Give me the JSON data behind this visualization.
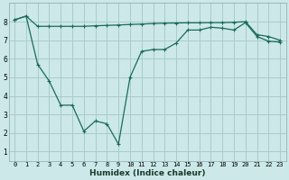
{
  "title": "",
  "xlabel": "Humidex (Indice chaleur)",
  "background_color": "#cce8e8",
  "grid_color": "#aacccc",
  "line_color": "#1a6b5a",
  "xlim": [
    -0.5,
    23.5
  ],
  "ylim": [
    0.5,
    9.0
  ],
  "yticks": [
    1,
    2,
    3,
    4,
    5,
    6,
    7,
    8
  ],
  "xticks": [
    0,
    1,
    2,
    3,
    4,
    5,
    6,
    7,
    8,
    9,
    10,
    11,
    12,
    13,
    14,
    15,
    16,
    17,
    18,
    19,
    20,
    21,
    22,
    23
  ],
  "line1_x": [
    0,
    1,
    2,
    3,
    4,
    5,
    6,
    7,
    8,
    9,
    10,
    11,
    12,
    13,
    14,
    15,
    16,
    17,
    18,
    19,
    20,
    21,
    22,
    23
  ],
  "line1_y": [
    8.1,
    8.3,
    7.75,
    7.75,
    7.75,
    7.75,
    7.75,
    7.78,
    7.8,
    7.82,
    7.85,
    7.87,
    7.9,
    7.92,
    7.93,
    7.94,
    7.94,
    7.95,
    7.95,
    7.97,
    8.0,
    7.3,
    7.2,
    7.0
  ],
  "line2_x": [
    0,
    1,
    2,
    3,
    4,
    5,
    6,
    7,
    8,
    9,
    10,
    11,
    12,
    13,
    14,
    15,
    16,
    17,
    18,
    19,
    20,
    21,
    22,
    23
  ],
  "line2_y": [
    8.1,
    8.3,
    5.7,
    4.8,
    3.5,
    3.5,
    2.1,
    2.65,
    2.5,
    1.4,
    5.0,
    6.4,
    6.5,
    6.5,
    6.85,
    7.55,
    7.55,
    7.7,
    7.65,
    7.55,
    7.95,
    7.2,
    6.95,
    6.9
  ],
  "xlabel_fontsize": 6.5,
  "tick_fontsize": 5.0
}
